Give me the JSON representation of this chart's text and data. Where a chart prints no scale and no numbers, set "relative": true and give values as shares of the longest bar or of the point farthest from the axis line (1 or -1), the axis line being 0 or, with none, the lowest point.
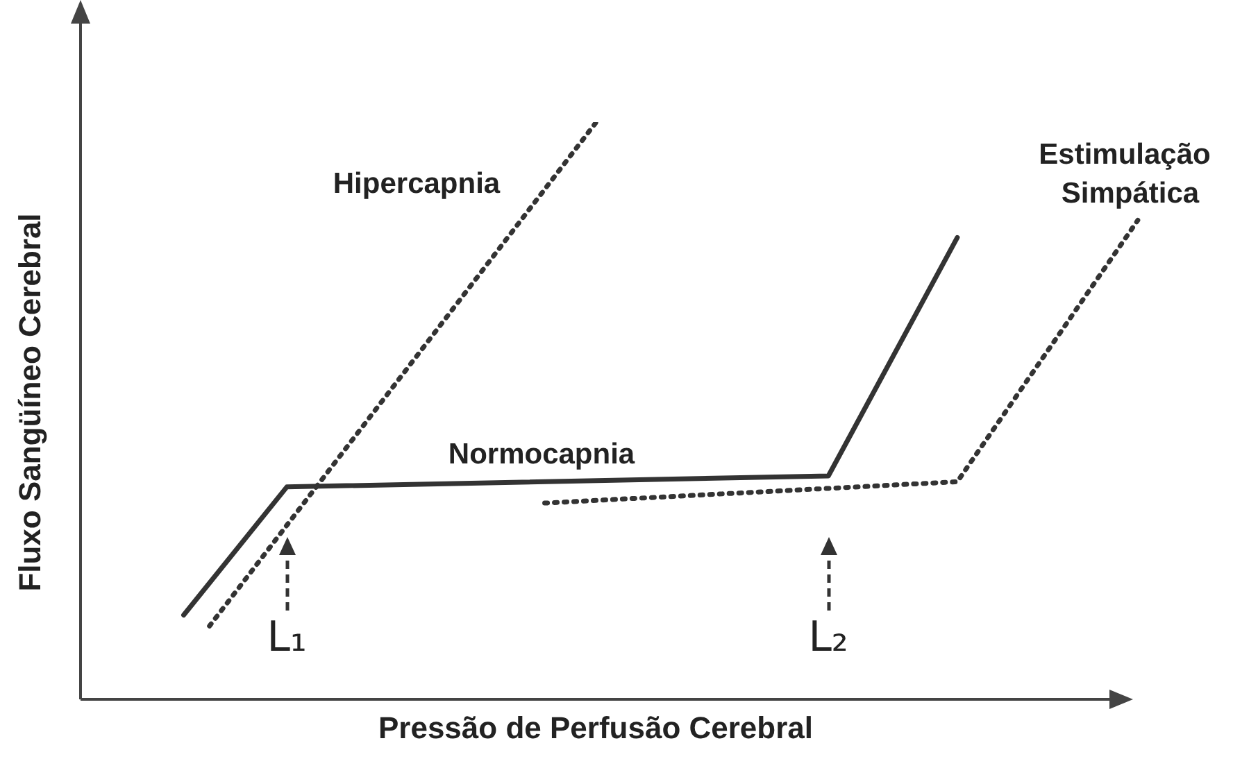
{
  "chart_data": {
    "type": "line",
    "relative": true,
    "xlabel": "Pressão de Perfusão Cerebral",
    "ylabel": "Fluxo Sangüíneo Cerebral",
    "legend": false,
    "tick_labels": false,
    "marker": "none",
    "categories": [
      null,
      null,
      null,
      null,
      null,
      null,
      null,
      null,
      null,
      null,
      null,
      null,
      null,
      null,
      null,
      null,
      null,
      null,
      null,
      null,
      null,
      null,
      null,
      null,
      null,
      null,
      null,
      null,
      null,
      null,
      null,
      null,
      null,
      null,
      null,
      null,
      null,
      null,
      null,
      null,
      null,
      null,
      null
    ],
    "series": [
      {
        "name": "Hipercapnia",
        "color": "#333333",
        "line_style": "dotted",
        "values": [
          null,
          null,
          null,
          null,
          null,
          0.127,
          null,
          null,
          null,
          null,
          null,
          null,
          null,
          null,
          null,
          null,
          null,
          null,
          null,
          null,
          1.0,
          null,
          null,
          null,
          null,
          null,
          null,
          null,
          null,
          null,
          null,
          null,
          null,
          null,
          null,
          null,
          null,
          null,
          null,
          null,
          null,
          null,
          null
        ]
      },
      {
        "name": "Normocapnia",
        "color": "#333333",
        "line_style": "solid",
        "values": [
          null,
          null,
          null,
          null,
          0.146,
          null,
          null,
          null,
          0.368,
          null,
          null,
          null,
          null,
          null,
          null,
          null,
          null,
          null,
          null,
          null,
          null,
          null,
          null,
          null,
          null,
          null,
          null,
          null,
          null,
          0.387,
          null,
          null,
          null,
          null,
          0.8,
          null,
          null,
          null,
          null,
          null,
          null,
          null,
          null
        ]
      },
      {
        "name": "Estimulação Simpática",
        "color": "#333333",
        "line_style": "dotted",
        "values": [
          null,
          null,
          null,
          null,
          null,
          null,
          null,
          null,
          null,
          null,
          null,
          null,
          null,
          null,
          null,
          null,
          null,
          null,
          0.34,
          null,
          null,
          null,
          null,
          null,
          null,
          null,
          null,
          null,
          null,
          null,
          null,
          null,
          null,
          null,
          0.377,
          null,
          null,
          null,
          null,
          null,
          null,
          0.83,
          null
        ]
      }
    ],
    "annotations": [
      "L₁",
      "L₂"
    ]
  }
}
